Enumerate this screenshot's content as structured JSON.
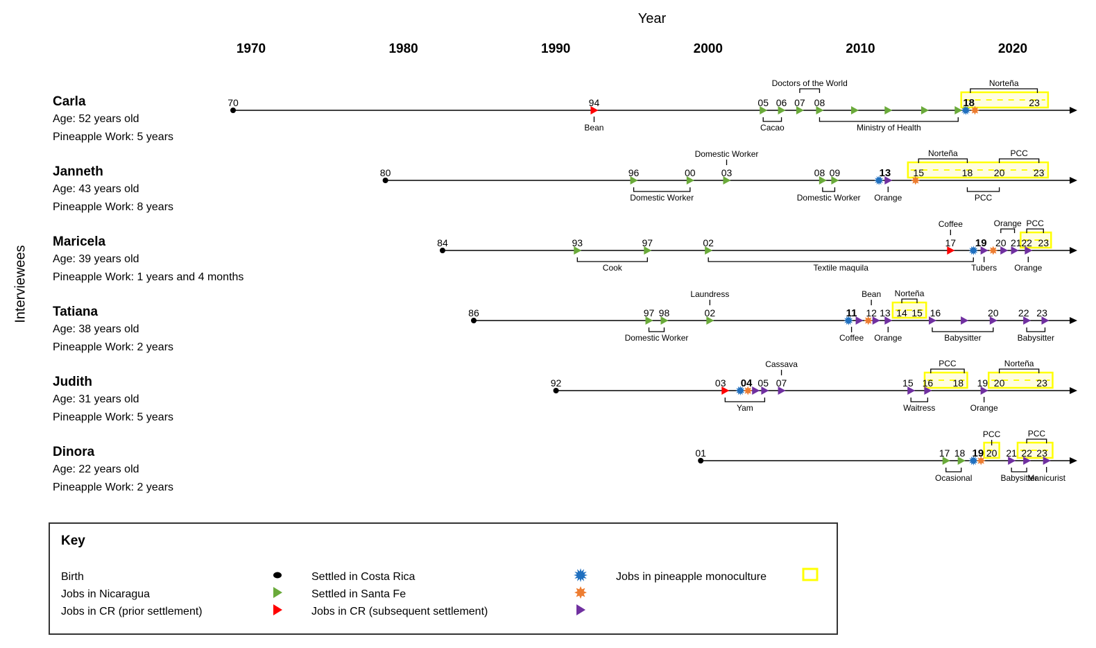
{
  "axis": {
    "title": "Year",
    "ylabel": "Interviewees",
    "ticks": [
      1970,
      1980,
      1990,
      2000,
      2010,
      2020
    ]
  },
  "colors": {
    "birth": "#000000",
    "nicaragua": "#6aaa3a",
    "cr_prior": "#ff0000",
    "cr_subsequent": "#7030a0",
    "settled_cr": "#1f6fbf",
    "settled_sf": "#ed7d31",
    "pineapple": "#ffff00"
  },
  "people": [
    {
      "name": "Carla",
      "age": "Age: 52 years old",
      "work": "Pineapple Work: 5 years",
      "markers": [
        {
          "year": 1970,
          "type": "birth"
        },
        {
          "year": 1993.7,
          "type": "cr_prior"
        },
        {
          "year": 2004.8,
          "type": "nicaragua"
        },
        {
          "year": 2006,
          "type": "nicaragua"
        },
        {
          "year": 2007.2,
          "type": "nicaragua"
        },
        {
          "year": 2008.5,
          "type": "nicaragua"
        },
        {
          "year": 2010.8,
          "type": "nicaragua"
        },
        {
          "year": 2013,
          "type": "nicaragua"
        },
        {
          "year": 2015.4,
          "type": "nicaragua"
        },
        {
          "year": 2017.6,
          "type": "nicaragua"
        },
        {
          "year": 2018.1,
          "type": "settled_cr"
        },
        {
          "year": 2018.7,
          "type": "settled_sf"
        }
      ],
      "numbers": [
        {
          "year": 1970,
          "text": "70"
        },
        {
          "year": 1993.7,
          "text": "94"
        },
        {
          "year": 2004.8,
          "text": "05"
        },
        {
          "year": 2006,
          "text": "06"
        },
        {
          "year": 2007.2,
          "text": "07"
        },
        {
          "year": 2008.5,
          "text": "08"
        },
        {
          "year": 2018.3,
          "text": "18",
          "bold": true
        },
        {
          "year": 2022.6,
          "text": "23"
        }
      ],
      "boxes": [
        {
          "from": 2017.8,
          "to": 2023.5
        }
      ],
      "notes": [
        {
          "from": 1993.7,
          "to": 1993.7,
          "side": "below",
          "label": "Bean"
        },
        {
          "from": 2004.8,
          "to": 2006,
          "side": "below",
          "label": "Cacao"
        },
        {
          "from": 2007.2,
          "to": 2008.5,
          "side": "above",
          "label": "Doctors of the World"
        },
        {
          "from": 2008.5,
          "to": 2017.6,
          "side": "below",
          "label": "Ministry of Health"
        },
        {
          "from": 2018.4,
          "to": 2022.8,
          "side": "above",
          "label": "Norteña"
        }
      ]
    },
    {
      "name": "Janneth",
      "age": "Age: 43 years old",
      "work": "Pineapple Work: 8 years",
      "markers": [
        {
          "year": 1980,
          "type": "birth"
        },
        {
          "year": 1996.3,
          "type": "nicaragua"
        },
        {
          "year": 2000,
          "type": "nicaragua"
        },
        {
          "year": 2002.4,
          "type": "nicaragua"
        },
        {
          "year": 2008.7,
          "type": "nicaragua"
        },
        {
          "year": 2009.5,
          "type": "nicaragua"
        },
        {
          "year": 2012.4,
          "type": "settled_cr"
        },
        {
          "year": 2013,
          "type": "cr_subsequent"
        },
        {
          "year": 2014.8,
          "type": "settled_sf"
        }
      ],
      "numbers": [
        {
          "year": 1980,
          "text": "80"
        },
        {
          "year": 1996.3,
          "text": "96"
        },
        {
          "year": 2000,
          "text": "00"
        },
        {
          "year": 2002.4,
          "text": "03"
        },
        {
          "year": 2008.5,
          "text": "08"
        },
        {
          "year": 2009.5,
          "text": "09"
        },
        {
          "year": 2012.8,
          "text": "13",
          "bold": true
        },
        {
          "year": 2015,
          "text": "15"
        },
        {
          "year": 2018.2,
          "text": "18"
        },
        {
          "year": 2020.3,
          "text": "20"
        },
        {
          "year": 2022.9,
          "text": "23"
        }
      ],
      "boxes": [
        {
          "from": 2014.3,
          "to": 2023.5
        }
      ],
      "notes": [
        {
          "from": 1996.3,
          "to": 2000,
          "side": "below",
          "label": "Domestic Worker"
        },
        {
          "from": 2002.4,
          "to": 2002.4,
          "side": "above",
          "label": "Domestic Worker"
        },
        {
          "from": 2008.7,
          "to": 2009.5,
          "side": "below",
          "label": "Domestic Worker"
        },
        {
          "from": 2013,
          "to": 2013,
          "side": "below",
          "label": "Orange"
        },
        {
          "from": 2015,
          "to": 2018.2,
          "side": "above",
          "label": "Norteña"
        },
        {
          "from": 2018.2,
          "to": 2020.3,
          "side": "below",
          "label": "PCC"
        },
        {
          "from": 2020.3,
          "to": 2022.9,
          "side": "above",
          "label": "PCC"
        }
      ]
    },
    {
      "name": "Maricela",
      "age": "Age: 39 years old",
      "work": "Pineapple Work: 1 years and 4 months",
      "markers": [
        {
          "year": 1983.75,
          "type": "birth"
        },
        {
          "year": 1992.6,
          "type": "nicaragua"
        },
        {
          "year": 1997.2,
          "type": "nicaragua"
        },
        {
          "year": 2001.2,
          "type": "nicaragua"
        },
        {
          "year": 2017.1,
          "type": "cr_prior"
        },
        {
          "year": 2018.6,
          "type": "settled_cr"
        },
        {
          "year": 2019.3,
          "type": "cr_subsequent"
        },
        {
          "year": 2019.9,
          "type": "settled_sf"
        },
        {
          "year": 2020.6,
          "type": "cr_subsequent"
        },
        {
          "year": 2021.3,
          "type": "cr_subsequent"
        },
        {
          "year": 2022.2,
          "type": "cr_subsequent"
        }
      ],
      "numbers": [
        {
          "year": 1983.75,
          "text": "84"
        },
        {
          "year": 1992.6,
          "text": "93"
        },
        {
          "year": 1997.2,
          "text": "97"
        },
        {
          "year": 2001.2,
          "text": "02"
        },
        {
          "year": 2017.1,
          "text": "17"
        },
        {
          "year": 2019.1,
          "text": "19",
          "bold": true
        },
        {
          "year": 2020.4,
          "text": "20"
        },
        {
          "year": 2021.4,
          "text": "21"
        },
        {
          "year": 2022.1,
          "text": "22"
        },
        {
          "year": 2023.2,
          "text": "23"
        }
      ],
      "boxes": [
        {
          "from": 2021.7,
          "to": 2023.7
        }
      ],
      "notes": [
        {
          "from": 1992.6,
          "to": 1997.2,
          "side": "below",
          "label": "Cook"
        },
        {
          "from": 2001.2,
          "to": 2018.6,
          "side": "below",
          "label": "Textile maquila"
        },
        {
          "from": 2017.1,
          "to": 2017.1,
          "side": "above",
          "label": "Coffee"
        },
        {
          "from": 2019.3,
          "to": 2019.3,
          "side": "below",
          "label": "Tubers"
        },
        {
          "from": 2020.4,
          "to": 2021.3,
          "side": "above",
          "label": "Orange"
        },
        {
          "from": 2022.2,
          "to": 2022.2,
          "side": "below",
          "label": "Orange"
        },
        {
          "from": 2022.1,
          "to": 2023.2,
          "side": "above",
          "label": "PCC"
        }
      ]
    },
    {
      "name": "Tatiana",
      "age": "Age: 38 years old",
      "work": "Pineapple Work: 2 years",
      "markers": [
        {
          "year": 1985.8,
          "type": "birth"
        },
        {
          "year": 1997.3,
          "type": "nicaragua"
        },
        {
          "year": 1998.3,
          "type": "nicaragua"
        },
        {
          "year": 2001.3,
          "type": "nicaragua"
        },
        {
          "year": 2010.4,
          "type": "settled_cr"
        },
        {
          "year": 2011.1,
          "type": "cr_subsequent"
        },
        {
          "year": 2011.7,
          "type": "settled_sf"
        },
        {
          "year": 2012.2,
          "type": "cr_subsequent"
        },
        {
          "year": 2013,
          "type": "cr_subsequent"
        },
        {
          "year": 2015.9,
          "type": "cr_subsequent"
        },
        {
          "year": 2018,
          "type": "cr_subsequent"
        },
        {
          "year": 2019.9,
          "type": "cr_subsequent"
        },
        {
          "year": 2022.1,
          "type": "cr_subsequent"
        },
        {
          "year": 2023.3,
          "type": "cr_subsequent"
        }
      ],
      "numbers": [
        {
          "year": 1985.8,
          "text": "86"
        },
        {
          "year": 1997.3,
          "text": "97"
        },
        {
          "year": 1998.3,
          "text": "98"
        },
        {
          "year": 2001.3,
          "text": "02"
        },
        {
          "year": 2010.6,
          "text": "11",
          "bold": true
        },
        {
          "year": 2011.9,
          "text": "12"
        },
        {
          "year": 2012.8,
          "text": "13"
        },
        {
          "year": 2013.9,
          "text": "14"
        },
        {
          "year": 2014.9,
          "text": "15"
        },
        {
          "year": 2016.1,
          "text": "16"
        },
        {
          "year": 2019.9,
          "text": "20"
        },
        {
          "year": 2021.9,
          "text": "22"
        },
        {
          "year": 2023.1,
          "text": "23"
        }
      ],
      "boxes": [
        {
          "from": 2013.3,
          "to": 2015.5
        }
      ],
      "notes": [
        {
          "from": 1997.3,
          "to": 1998.3,
          "side": "below",
          "label": "Domestic Worker"
        },
        {
          "from": 2001.3,
          "to": 2001.3,
          "side": "above",
          "label": "Laundress"
        },
        {
          "from": 2010.6,
          "to": 2010.6,
          "side": "below",
          "label": "Coffee"
        },
        {
          "from": 2011.9,
          "to": 2011.9,
          "side": "above",
          "label": "Bean"
        },
        {
          "from": 2013,
          "to": 2013,
          "side": "below",
          "label": "Orange"
        },
        {
          "from": 2013.9,
          "to": 2014.9,
          "side": "above",
          "label": "Norteña"
        },
        {
          "from": 2015.9,
          "to": 2019.9,
          "side": "below",
          "label": "Babysitter"
        },
        {
          "from": 2022.1,
          "to": 2023.3,
          "side": "below",
          "label": "Babysitter"
        }
      ]
    },
    {
      "name": "Judith",
      "age": "Age: 31 years old",
      "work": "Pineapple Work: 5 years",
      "markers": [
        {
          "year": 1991.2,
          "type": "birth"
        },
        {
          "year": 2002.3,
          "type": "cr_prior"
        },
        {
          "year": 2003.3,
          "type": "settled_cr"
        },
        {
          "year": 2003.8,
          "type": "settled_sf"
        },
        {
          "year": 2004.3,
          "type": "cr_subsequent"
        },
        {
          "year": 2004.9,
          "type": "cr_subsequent"
        },
        {
          "year": 2006,
          "type": "cr_subsequent"
        },
        {
          "year": 2014.5,
          "type": "cr_subsequent"
        },
        {
          "year": 2015.6,
          "type": "cr_subsequent"
        },
        {
          "year": 2019.3,
          "type": "cr_subsequent"
        }
      ],
      "numbers": [
        {
          "year": 1991.2,
          "text": "92"
        },
        {
          "year": 2002,
          "text": "03"
        },
        {
          "year": 2003.7,
          "text": "04",
          "bold": true
        },
        {
          "year": 2004.8,
          "text": "05"
        },
        {
          "year": 2006,
          "text": "07"
        },
        {
          "year": 2014.3,
          "text": "15"
        },
        {
          "year": 2015.6,
          "text": "16"
        },
        {
          "year": 2017.6,
          "text": "18"
        },
        {
          "year": 2019.2,
          "text": "19"
        },
        {
          "year": 2020.3,
          "text": "20"
        },
        {
          "year": 2023.1,
          "text": "23"
        }
      ],
      "boxes": [
        {
          "from": 2015.4,
          "to": 2018.2
        },
        {
          "from": 2019.6,
          "to": 2023.8
        }
      ],
      "notes": [
        {
          "from": 2002.3,
          "to": 2004.9,
          "side": "below",
          "label": "Yam"
        },
        {
          "from": 2006,
          "to": 2006,
          "side": "above",
          "label": "Cassava"
        },
        {
          "from": 2014.5,
          "to": 2015.6,
          "side": "below",
          "label": "Waitress"
        },
        {
          "from": 2015.8,
          "to": 2018,
          "side": "above",
          "label": "PCC"
        },
        {
          "from": 2019.3,
          "to": 2019.3,
          "side": "below",
          "label": "Orange"
        },
        {
          "from": 2020.3,
          "to": 2022.9,
          "side": "above",
          "label": "Norteña"
        }
      ]
    },
    {
      "name": "Dinora",
      "age": "Age: 22 years old",
      "work": "Pineapple Work: 2 years",
      "markers": [
        {
          "year": 2000.7,
          "type": "birth"
        },
        {
          "year": 2016.8,
          "type": "nicaragua"
        },
        {
          "year": 2017.8,
          "type": "nicaragua"
        },
        {
          "year": 2018.6,
          "type": "settled_cr"
        },
        {
          "year": 2019.1,
          "type": "settled_sf"
        },
        {
          "year": 2021.1,
          "type": "cr_subsequent"
        },
        {
          "year": 2022.1,
          "type": "cr_subsequent"
        },
        {
          "year": 2023.4,
          "type": "cr_subsequent"
        }
      ],
      "numbers": [
        {
          "year": 2000.7,
          "text": "01"
        },
        {
          "year": 2016.7,
          "text": "17"
        },
        {
          "year": 2017.7,
          "text": "18"
        },
        {
          "year": 2018.9,
          "text": "19",
          "bold": true
        },
        {
          "year": 2019.8,
          "text": "20"
        },
        {
          "year": 2021.1,
          "text": "21"
        },
        {
          "year": 2022.1,
          "text": "22"
        },
        {
          "year": 2023.1,
          "text": "23"
        }
      ],
      "boxes": [
        {
          "from": 2019.3,
          "to": 2020.3
        },
        {
          "from": 2021.5,
          "to": 2023.8
        }
      ],
      "notes": [
        {
          "from": 2016.8,
          "to": 2017.8,
          "side": "below",
          "label": "Ocasional"
        },
        {
          "from": 2019.8,
          "to": 2019.8,
          "side": "above",
          "label": "PCC"
        },
        {
          "from": 2021.1,
          "to": 2022.1,
          "side": "below",
          "label": "Babysitter"
        },
        {
          "from": 2022.1,
          "to": 2023.4,
          "side": "above",
          "label": "PCC"
        },
        {
          "from": 2023.4,
          "to": 2023.4,
          "side": "below",
          "label": "Manicurist"
        }
      ]
    }
  ],
  "key": {
    "title": "Key",
    "items": [
      {
        "label": "Birth",
        "type": "birth"
      },
      {
        "label": "Jobs in Nicaragua",
        "type": "nicaragua"
      },
      {
        "label": "Jobs in CR (prior settlement)",
        "type": "cr_prior"
      },
      {
        "label": "Settled in Costa Rica",
        "type": "settled_cr"
      },
      {
        "label": "Settled in Santa Fe",
        "type": "settled_sf"
      },
      {
        "label": "Jobs in CR (subsequent settlement)",
        "type": "cr_subsequent"
      },
      {
        "label": "Jobs in pineapple monoculture",
        "type": "pineapple"
      }
    ]
  }
}
